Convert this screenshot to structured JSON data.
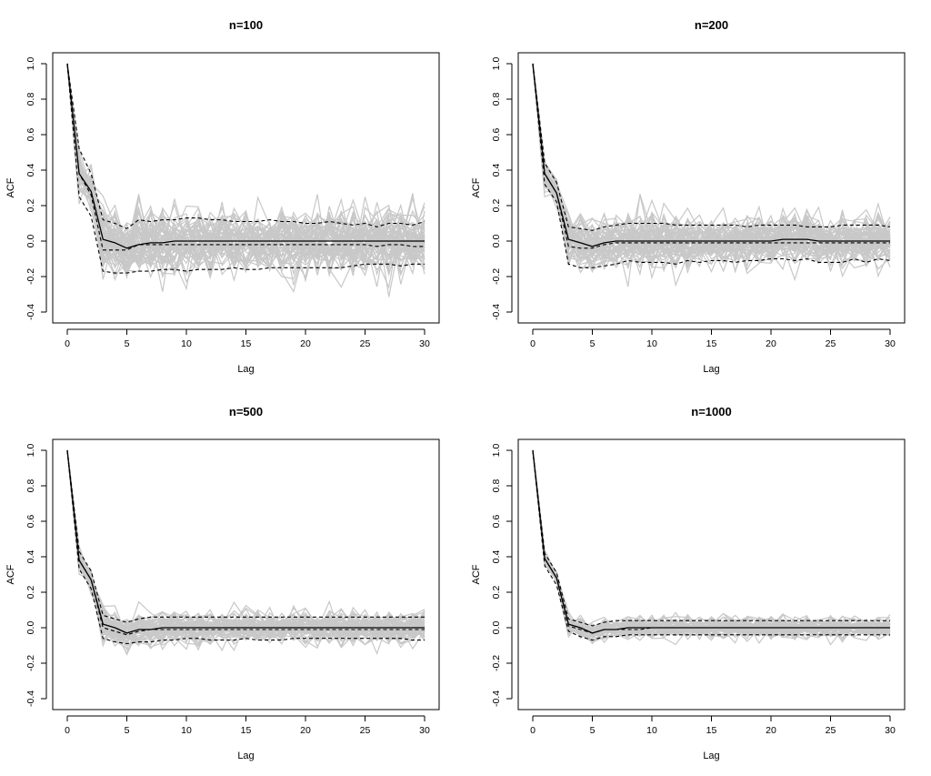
{
  "chart_data": [
    {
      "type": "line",
      "title": "n=100",
      "xlabel": "Lag",
      "ylabel": "ACF",
      "xlim": [
        0,
        30
      ],
      "ylim": [
        -0.4,
        1.0
      ],
      "xticks": [
        0,
        5,
        10,
        15,
        20,
        25,
        30
      ],
      "yticks": [
        -0.4,
        -0.2,
        0.0,
        0.2,
        0.4,
        0.6,
        0.8,
        1.0
      ],
      "lags": [
        0,
        1,
        2,
        3,
        4,
        5,
        6,
        7,
        8,
        9,
        10,
        11,
        12,
        13,
        14,
        15,
        16,
        17,
        18,
        19,
        20,
        21,
        22,
        23,
        24,
        25,
        26,
        27,
        28,
        29,
        30
      ],
      "series": [
        {
          "role": "mean",
          "style": "solid-black",
          "values": [
            1.0,
            0.38,
            0.28,
            0.01,
            -0.01,
            -0.04,
            -0.02,
            -0.01,
            -0.01,
            0.0,
            0.0,
            0.0,
            0.0,
            0.0,
            0.0,
            0.0,
            0.0,
            0.0,
            0.0,
            0.0,
            0.0,
            0.0,
            0.0,
            0.0,
            0.0,
            0.0,
            0.0,
            0.0,
            0.0,
            0.0,
            0.0
          ]
        },
        {
          "role": "upper band",
          "style": "dashed-black",
          "values": [
            1.0,
            0.52,
            0.38,
            0.12,
            0.1,
            0.07,
            0.12,
            0.11,
            0.12,
            0.12,
            0.13,
            0.13,
            0.12,
            0.12,
            0.11,
            0.11,
            0.11,
            0.12,
            0.11,
            0.11,
            0.1,
            0.1,
            0.11,
            0.1,
            0.09,
            0.1,
            0.08,
            0.1,
            0.1,
            0.09,
            0.11
          ]
        },
        {
          "role": "lower band",
          "style": "dashed-black",
          "values": [
            1.0,
            0.25,
            0.14,
            -0.17,
            -0.18,
            -0.18,
            -0.17,
            -0.17,
            -0.16,
            -0.16,
            -0.17,
            -0.16,
            -0.16,
            -0.16,
            -0.15,
            -0.16,
            -0.16,
            -0.15,
            -0.15,
            -0.15,
            -0.15,
            -0.15,
            -0.15,
            -0.15,
            -0.14,
            -0.13,
            -0.13,
            -0.13,
            -0.14,
            -0.13,
            -0.13
          ]
        },
        {
          "role": "inner mean",
          "style": "dashed-black",
          "values": [
            1.0,
            0.38,
            0.26,
            -0.05,
            -0.05,
            -0.05,
            -0.02,
            -0.02,
            -0.02,
            -0.02,
            -0.02,
            -0.02,
            -0.02,
            -0.02,
            -0.02,
            -0.02,
            -0.02,
            -0.02,
            -0.02,
            -0.02,
            -0.02,
            -0.02,
            -0.02,
            -0.02,
            -0.02,
            -0.02,
            -0.03,
            -0.02,
            -0.02,
            -0.03,
            -0.03
          ]
        }
      ],
      "simulations": {
        "count": 60,
        "color": "#c8c8c8",
        "spread": 0.09
      }
    },
    {
      "type": "line",
      "title": "n=200",
      "xlabel": "Lag",
      "ylabel": "ACF",
      "xlim": [
        0,
        30
      ],
      "ylim": [
        -0.4,
        1.0
      ],
      "xticks": [
        0,
        5,
        10,
        15,
        20,
        25,
        30
      ],
      "yticks": [
        -0.4,
        -0.2,
        0.0,
        0.2,
        0.4,
        0.6,
        0.8,
        1.0
      ],
      "lags": [
        0,
        1,
        2,
        3,
        4,
        5,
        6,
        7,
        8,
        9,
        10,
        11,
        12,
        13,
        14,
        15,
        16,
        17,
        18,
        19,
        20,
        21,
        22,
        23,
        24,
        25,
        26,
        27,
        28,
        29,
        30
      ],
      "series": [
        {
          "role": "mean",
          "style": "solid-black",
          "values": [
            1.0,
            0.38,
            0.27,
            0.01,
            -0.01,
            -0.03,
            -0.01,
            0.0,
            0.0,
            0.0,
            0.0,
            0.0,
            0.0,
            0.0,
            0.0,
            0.0,
            0.0,
            0.0,
            0.0,
            0.0,
            0.0,
            0.01,
            0.01,
            0.01,
            0.0,
            0.0,
            0.0,
            0.0,
            0.0,
            0.0,
            0.0
          ]
        },
        {
          "role": "upper band",
          "style": "dashed-black",
          "values": [
            1.0,
            0.44,
            0.33,
            0.08,
            0.07,
            0.06,
            0.08,
            0.09,
            0.1,
            0.1,
            0.1,
            0.1,
            0.09,
            0.09,
            0.09,
            0.09,
            0.09,
            0.09,
            0.08,
            0.09,
            0.09,
            0.09,
            0.09,
            0.08,
            0.08,
            0.08,
            0.09,
            0.09,
            0.09,
            0.09,
            0.08
          ]
        },
        {
          "role": "lower band",
          "style": "dashed-black",
          "values": [
            1.0,
            0.32,
            0.22,
            -0.13,
            -0.15,
            -0.15,
            -0.14,
            -0.13,
            -0.11,
            -0.12,
            -0.12,
            -0.12,
            -0.13,
            -0.11,
            -0.12,
            -0.11,
            -0.11,
            -0.12,
            -0.11,
            -0.11,
            -0.1,
            -0.1,
            -0.11,
            -0.1,
            -0.12,
            -0.12,
            -0.12,
            -0.1,
            -0.12,
            -0.1,
            -0.11
          ]
        },
        {
          "role": "inner mean",
          "style": "dashed-black",
          "values": [
            1.0,
            0.38,
            0.27,
            -0.03,
            -0.04,
            -0.04,
            -0.02,
            -0.01,
            -0.01,
            -0.01,
            -0.01,
            -0.01,
            -0.01,
            -0.01,
            -0.01,
            -0.01,
            -0.01,
            -0.01,
            -0.01,
            -0.01,
            -0.01,
            -0.01,
            -0.01,
            -0.01,
            -0.01,
            -0.01,
            -0.01,
            -0.01,
            -0.01,
            -0.01,
            -0.01
          ]
        }
      ],
      "simulations": {
        "count": 60,
        "color": "#c8c8c8",
        "spread": 0.07
      }
    },
    {
      "type": "line",
      "title": "n=500",
      "xlabel": "Lag",
      "ylabel": "ACF",
      "xlim": [
        0,
        30
      ],
      "ylim": [
        -0.4,
        1.0
      ],
      "xticks": [
        0,
        5,
        10,
        15,
        20,
        25,
        30
      ],
      "yticks": [
        -0.4,
        -0.2,
        0.0,
        0.2,
        0.4,
        0.6,
        0.8,
        1.0
      ],
      "lags": [
        0,
        1,
        2,
        3,
        4,
        5,
        6,
        7,
        8,
        9,
        10,
        11,
        12,
        13,
        14,
        15,
        16,
        17,
        18,
        19,
        20,
        21,
        22,
        23,
        24,
        25,
        26,
        27,
        28,
        29,
        30
      ],
      "series": [
        {
          "role": "mean",
          "style": "solid-black",
          "values": [
            1.0,
            0.38,
            0.27,
            0.02,
            0.0,
            -0.03,
            -0.01,
            -0.01,
            0.0,
            0.0,
            0.0,
            0.0,
            0.0,
            0.0,
            0.0,
            0.0,
            0.0,
            0.0,
            0.0,
            0.0,
            0.0,
            0.0,
            0.0,
            0.0,
            0.0,
            0.0,
            0.0,
            0.0,
            0.0,
            0.0,
            0.0
          ]
        },
        {
          "role": "upper band",
          "style": "dashed-black",
          "values": [
            1.0,
            0.43,
            0.32,
            0.07,
            0.05,
            0.03,
            0.05,
            0.06,
            0.06,
            0.06,
            0.06,
            0.06,
            0.06,
            0.06,
            0.06,
            0.06,
            0.06,
            0.06,
            0.06,
            0.06,
            0.06,
            0.06,
            0.06,
            0.06,
            0.06,
            0.06,
            0.06,
            0.06,
            0.06,
            0.06,
            0.06
          ]
        },
        {
          "role": "lower band",
          "style": "dashed-black",
          "values": [
            1.0,
            0.33,
            0.22,
            -0.06,
            -0.08,
            -0.09,
            -0.08,
            -0.08,
            -0.07,
            -0.07,
            -0.06,
            -0.06,
            -0.07,
            -0.07,
            -0.07,
            -0.06,
            -0.07,
            -0.07,
            -0.07,
            -0.06,
            -0.06,
            -0.06,
            -0.06,
            -0.06,
            -0.06,
            -0.06,
            -0.06,
            -0.06,
            -0.06,
            -0.07,
            -0.07
          ]
        },
        {
          "role": "inner mean",
          "style": "dashed-black",
          "values": [
            1.0,
            0.38,
            0.27,
            0.0,
            -0.02,
            -0.04,
            -0.02,
            -0.01,
            -0.01,
            -0.01,
            -0.01,
            -0.01,
            -0.01,
            -0.01,
            -0.01,
            -0.01,
            -0.01,
            -0.01,
            -0.01,
            -0.01,
            -0.01,
            -0.01,
            -0.01,
            -0.01,
            -0.01,
            -0.01,
            -0.01,
            -0.01,
            -0.01,
            -0.01,
            -0.01
          ]
        }
      ],
      "simulations": {
        "count": 55,
        "color": "#c8c8c8",
        "spread": 0.045
      }
    },
    {
      "type": "line",
      "title": "n=1000",
      "xlabel": "Lag",
      "ylabel": "ACF",
      "xlim": [
        0,
        30
      ],
      "ylim": [
        -0.4,
        1.0
      ],
      "xticks": [
        0,
        5,
        10,
        15,
        20,
        25,
        30
      ],
      "yticks": [
        -0.4,
        -0.2,
        0.0,
        0.2,
        0.4,
        0.6,
        0.8,
        1.0
      ],
      "lags": [
        0,
        1,
        2,
        3,
        4,
        5,
        6,
        7,
        8,
        9,
        10,
        11,
        12,
        13,
        14,
        15,
        16,
        17,
        18,
        19,
        20,
        21,
        22,
        23,
        24,
        25,
        26,
        27,
        28,
        29,
        30
      ],
      "series": [
        {
          "role": "mean",
          "style": "solid-black",
          "values": [
            1.0,
            0.39,
            0.28,
            0.02,
            0.0,
            -0.03,
            -0.01,
            -0.01,
            0.0,
            0.0,
            0.0,
            0.0,
            0.0,
            0.0,
            0.0,
            0.0,
            0.0,
            0.0,
            0.0,
            0.0,
            0.0,
            0.0,
            0.0,
            0.0,
            0.0,
            0.0,
            0.0,
            0.0,
            0.0,
            0.0,
            0.0
          ]
        },
        {
          "role": "upper band",
          "style": "dashed-black",
          "values": [
            1.0,
            0.42,
            0.31,
            0.05,
            0.03,
            0.01,
            0.03,
            0.04,
            0.04,
            0.04,
            0.04,
            0.04,
            0.04,
            0.04,
            0.04,
            0.04,
            0.04,
            0.04,
            0.04,
            0.04,
            0.04,
            0.04,
            0.04,
            0.04,
            0.04,
            0.04,
            0.04,
            0.04,
            0.04,
            0.04,
            0.04
          ]
        },
        {
          "role": "lower band",
          "style": "dashed-black",
          "values": [
            1.0,
            0.35,
            0.24,
            -0.02,
            -0.05,
            -0.07,
            -0.05,
            -0.05,
            -0.04,
            -0.04,
            -0.04,
            -0.04,
            -0.04,
            -0.04,
            -0.04,
            -0.04,
            -0.04,
            -0.04,
            -0.04,
            -0.04,
            -0.04,
            -0.04,
            -0.04,
            -0.04,
            -0.04,
            -0.04,
            -0.04,
            -0.04,
            -0.04,
            -0.04,
            -0.04
          ]
        },
        {
          "role": "inner mean",
          "style": "dashed-black",
          "values": [
            1.0,
            0.39,
            0.28,
            0.01,
            -0.01,
            -0.03,
            -0.01,
            -0.01,
            -0.01,
            -0.01,
            0.0,
            0.0,
            0.0,
            0.0,
            0.0,
            0.0,
            0.0,
            0.0,
            0.0,
            0.0,
            0.0,
            0.0,
            0.0,
            0.0,
            0.0,
            0.0,
            0.0,
            0.0,
            0.0,
            0.0,
            0.0
          ]
        }
      ],
      "simulations": {
        "count": 50,
        "color": "#c8c8c8",
        "spread": 0.03
      }
    }
  ]
}
